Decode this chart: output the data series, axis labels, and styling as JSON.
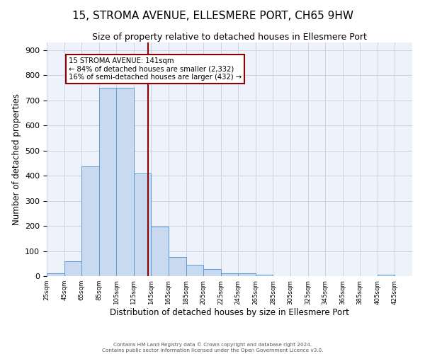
{
  "title": "15, STROMA AVENUE, ELLESMERE PORT, CH65 9HW",
  "subtitle": "Size of property relative to detached houses in Ellesmere Port",
  "xlabel": "Distribution of detached houses by size in Ellesmere Port",
  "ylabel": "Number of detached properties",
  "footer1": "Contains HM Land Registry data © Crown copyright and database right 2024.",
  "footer2": "Contains public sector information licensed under the Open Government Licence v3.0.",
  "bar_edges": [
    25,
    45,
    65,
    85,
    105,
    125,
    145,
    165,
    185,
    205,
    225,
    245,
    265,
    285,
    305,
    325,
    345,
    365,
    385,
    405,
    425,
    445
  ],
  "bar_heights": [
    10,
    58,
    438,
    750,
    750,
    410,
    198,
    77,
    44,
    28,
    11,
    10,
    5,
    0,
    0,
    0,
    0,
    0,
    0,
    5,
    0
  ],
  "bar_color": "#c9d9f0",
  "bar_edge_color": "#5b9bd5",
  "vline_x": 141,
  "vline_color": "#8b0000",
  "annotation_text": "15 STROMA AVENUE: 141sqm\n← 84% of detached houses are smaller (2,332)\n16% of semi-detached houses are larger (432) →",
  "annotation_box_color": "white",
  "annotation_box_edge_color": "#8b0000",
  "xlim": [
    25,
    445
  ],
  "ylim": [
    0,
    930
  ],
  "yticks": [
    0,
    100,
    200,
    300,
    400,
    500,
    600,
    700,
    800,
    900
  ],
  "xtick_labels": [
    "25sqm",
    "45sqm",
    "65sqm",
    "85sqm",
    "105sqm",
    "125sqm",
    "145sqm",
    "165sqm",
    "185sqm",
    "205sqm",
    "225sqm",
    "245sqm",
    "265sqm",
    "285sqm",
    "305sqm",
    "325sqm",
    "345sqm",
    "365sqm",
    "385sqm",
    "405sqm",
    "425sqm"
  ],
  "xtick_positions": [
    25,
    45,
    65,
    85,
    105,
    125,
    145,
    165,
    185,
    205,
    225,
    245,
    265,
    285,
    305,
    325,
    345,
    365,
    385,
    405,
    425
  ],
  "grid_color": "#d0d0e0",
  "bg_color": "#eef3fb",
  "title_fontsize": 11,
  "subtitle_fontsize": 9,
  "axis_fontsize": 8.5
}
